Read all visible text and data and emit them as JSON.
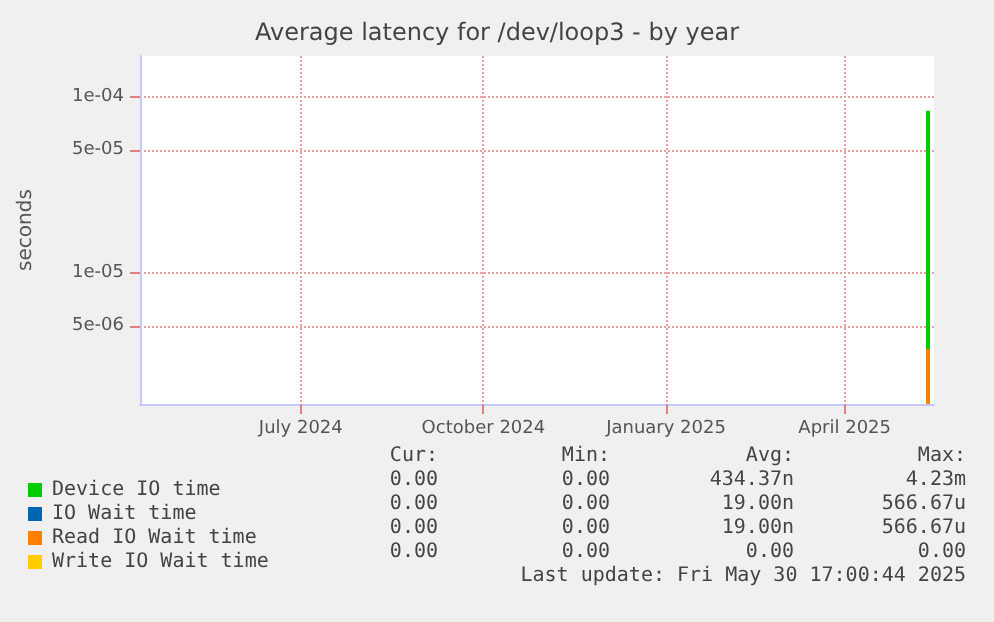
{
  "chart_data": {
    "type": "bar",
    "title": "Average latency for /dev/loop3 - by year",
    "ylabel": "seconds",
    "xlim": [
      "2024-04-11",
      "2025-05-16"
    ],
    "xticks": [
      {
        "value": "2024-07-01",
        "label": "July 2024"
      },
      {
        "value": "2024-10-01",
        "label": "October 2024"
      },
      {
        "value": "2025-01-01",
        "label": "January 2025"
      },
      {
        "value": "2025-04-01",
        "label": "April 2025"
      }
    ],
    "ylim": [
      1.8e-06,
      0.00017
    ],
    "log": true,
    "yticks": [
      {
        "value": 5e-06,
        "label": "5e-06"
      },
      {
        "value": 1e-05,
        "label": "1e-05"
      },
      {
        "value": 5e-05,
        "label": "5e-05"
      },
      {
        "value": 0.0001,
        "label": "1e-04"
      }
    ],
    "grid": true,
    "legend": "bottom left",
    "series": [
      {
        "name": "Device IO time",
        "color": "#00cc00",
        "x": [
          "2025-05-13"
        ],
        "values": [
          8.3e-05
        ]
      },
      {
        "name": "IO Wait time",
        "color": "#0066b3"
      },
      {
        "name": "Read IO Wait time",
        "color": "#ff8000",
        "x": [
          "2025-05-13"
        ],
        "values": [
          3.7e-06
        ]
      },
      {
        "name": "Write IO Wait time",
        "color": "#ffcc00"
      }
    ],
    "annotations": [
      "Cur:",
      "Min:",
      "Avg:",
      "Max:",
      "0.00",
      "0.00",
      "434.37n",
      "4.23m",
      "0.00",
      "0.00",
      "19.00n",
      "566.67u",
      "0.00",
      "0.00",
      "19.00n",
      "566.67u",
      "0.00",
      "0.00",
      "0.00",
      "0.00",
      "Last update: Fri May 30 17:00:44 2025"
    ]
  }
}
